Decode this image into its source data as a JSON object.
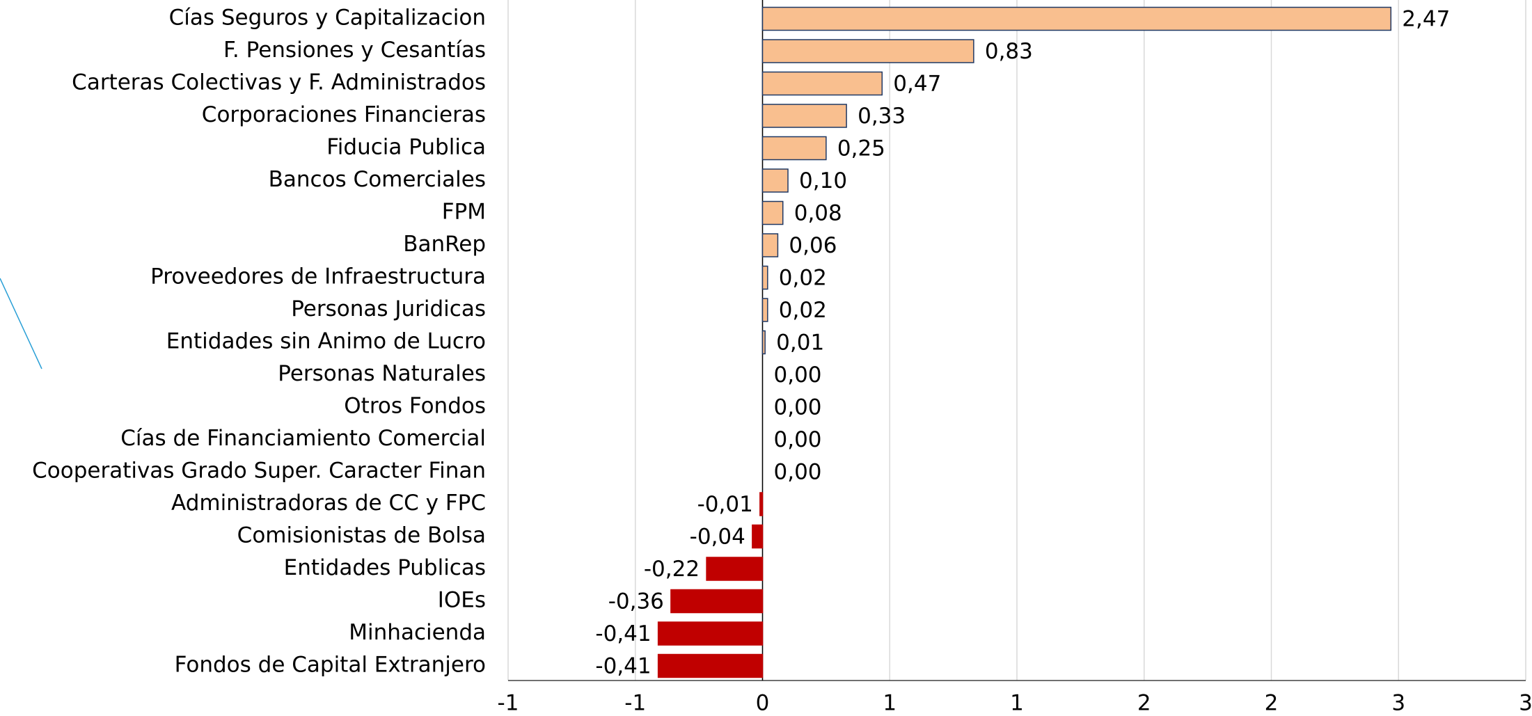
{
  "chart_data": {
    "type": "hbar",
    "categories": [
      "Cías Seguros y Capitalizacion",
      "F. Pensiones y Cesantías",
      "Carteras Colectivas y F. Administrados",
      "Corporaciones Financieras",
      "Fiducia Publica",
      "Bancos Comerciales",
      "FPM",
      "BanRep",
      "Proveedores de Infraestructura",
      "Personas Juridicas",
      "Entidades sin Animo de Lucro",
      "Personas Naturales",
      "Otros Fondos",
      "Cías de Financiamiento Comercial",
      "Cooperativas Grado Super. Caracter Finan",
      "Administradoras de CC y FPC",
      "Comisionistas de Bolsa",
      "Entidades Publicas",
      "IOEs",
      "Minhacienda",
      "Fondos de Capital Extranjero"
    ],
    "values": [
      2.47,
      0.83,
      0.47,
      0.33,
      0.25,
      0.1,
      0.08,
      0.06,
      0.02,
      0.02,
      0.01,
      0.0,
      0.0,
      0.0,
      0.0,
      -0.01,
      -0.04,
      -0.22,
      -0.36,
      -0.41,
      -0.41
    ],
    "value_labels": [
      "2,47",
      "0,83",
      "0,47",
      "0,33",
      "0,25",
      "0,10",
      "0,08",
      "0,06",
      "0,02",
      "0,02",
      "0,01",
      "0,00",
      "0,00",
      "0,00",
      "0,00",
      "-0,01",
      "-0,04",
      "-0,22",
      "-0,36",
      "-0,41",
      "-0,41"
    ],
    "color_positive": "#f9bf8f",
    "color_negative": "#c00000",
    "bar_edge_color": "#1f3864",
    "xlim": [
      -1,
      3
    ],
    "xticks": [
      -1,
      {
        "value": -0.5,
        "label": "-1"
      },
      0,
      {
        "value": 0.5,
        "label": "1"
      },
      1,
      {
        "value": 1.5,
        "label": "2"
      },
      2,
      {
        "value": 2.5,
        "label": "3"
      },
      3
    ],
    "grid": true
  }
}
